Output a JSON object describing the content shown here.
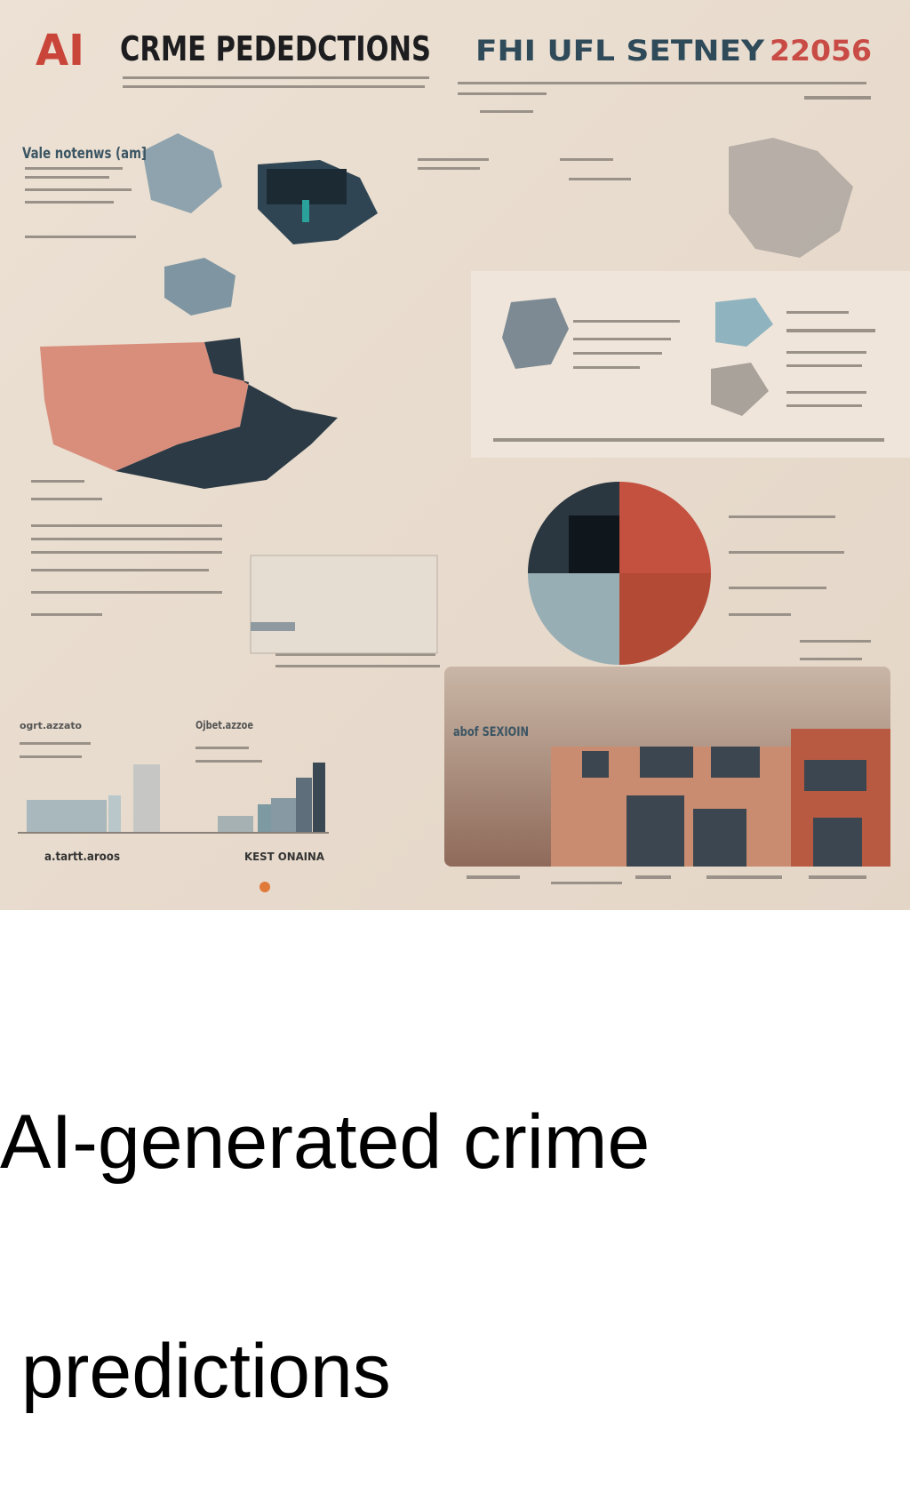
{
  "poster": {
    "logo": "AI",
    "title": "CRME PEDEDCTIONS",
    "subtitle_left": "FHI UFL SETNEY",
    "subtitle_right": "22056",
    "labels": [
      "Vale notenws (am]",
      "abof SEXIOIN",
      "a.tartt.aroos",
      "ogrt.azzato",
      "Ojbet.azzoe",
      "KEST ONAINA"
    ]
  },
  "caption": {
    "lines": [
      "AI-generated crime",
      " predictions"
    ]
  }
}
